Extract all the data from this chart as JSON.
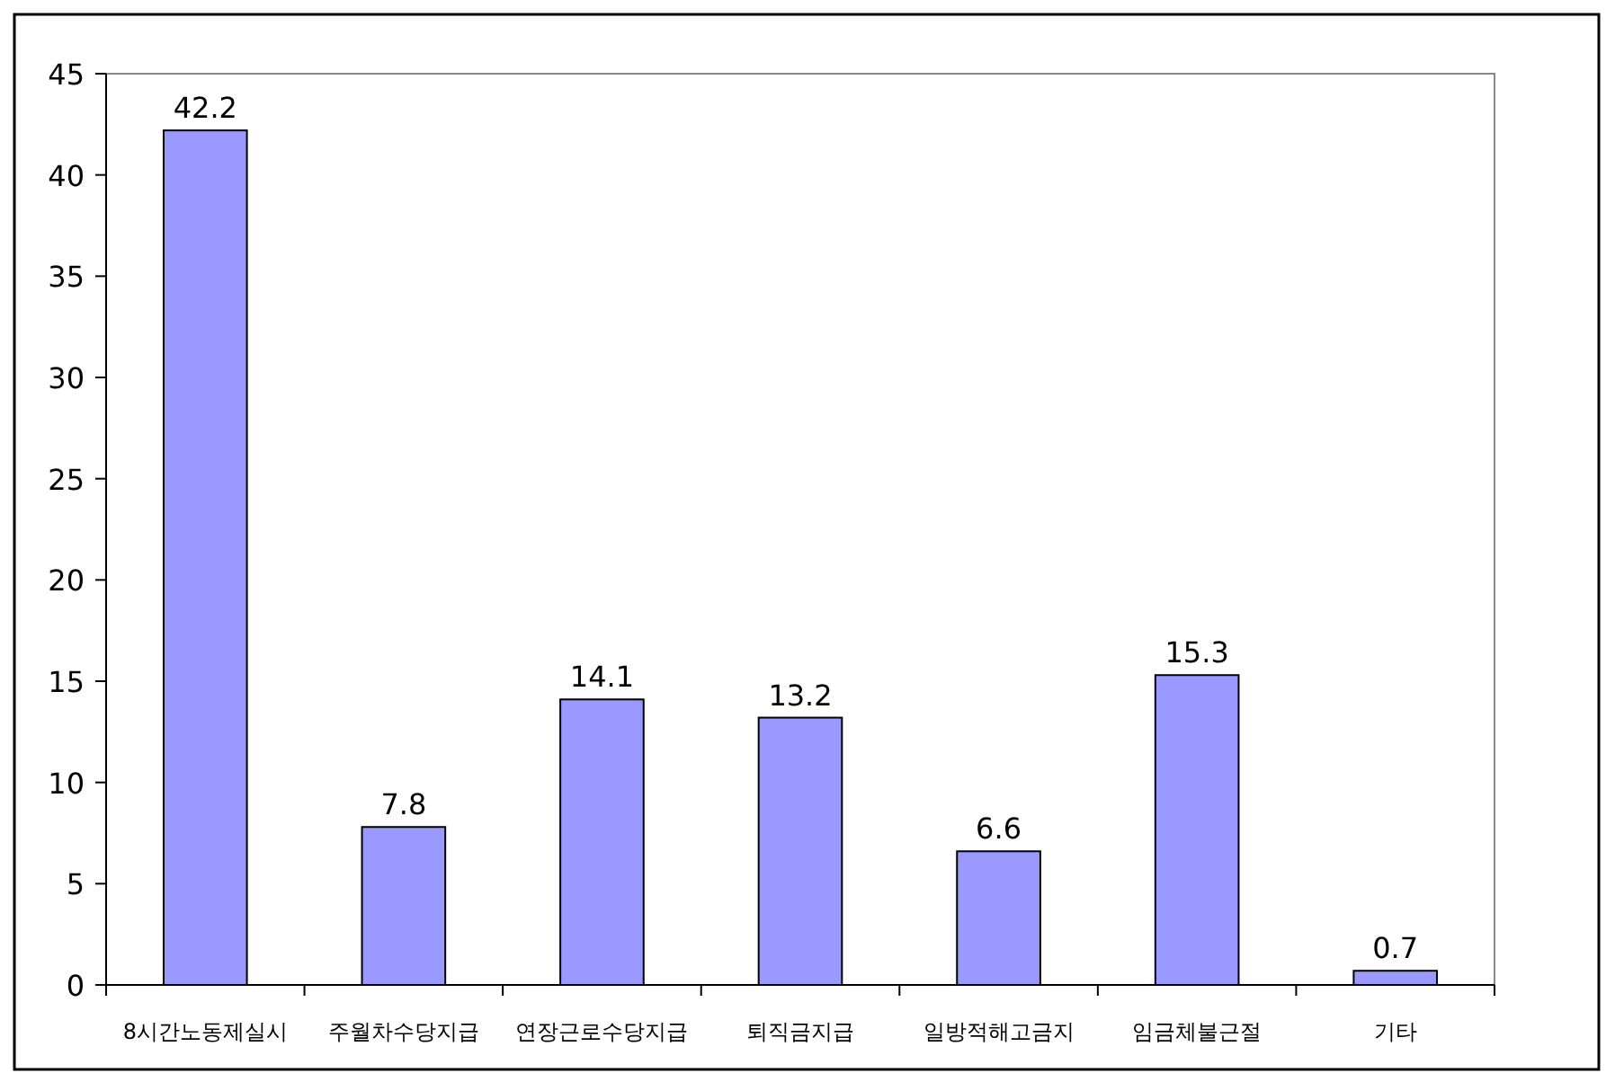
{
  "chart_data": {
    "type": "bar",
    "categories": [
      "8시간노동제실시",
      "주월차수당지급",
      "연장근로수당지급",
      "퇴직금지급",
      "일방적해고금지",
      "임금체불근절",
      "기타"
    ],
    "values": [
      42.2,
      7.8,
      14.1,
      13.2,
      6.6,
      15.3,
      0.7
    ],
    "color": "#9999ff",
    "ylim": [
      0,
      45
    ],
    "yticks": [
      0,
      5,
      10,
      15,
      20,
      25,
      30,
      35,
      40,
      45
    ],
    "data_labels": true
  }
}
